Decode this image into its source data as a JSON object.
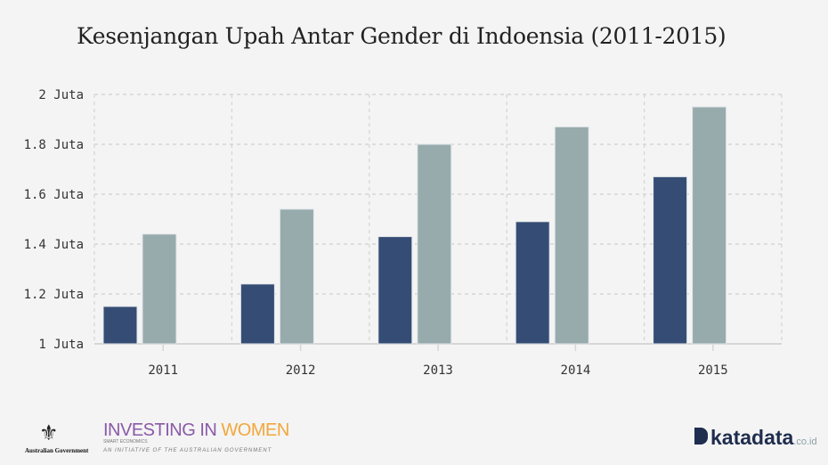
{
  "chart_data": {
    "type": "bar",
    "title": "Kesenjangan Upah Antar Gender di Indoensia (2011-2015)",
    "categories": [
      "2011",
      "2012",
      "2013",
      "2014",
      "2015"
    ],
    "series": [
      {
        "values": [
          1.15,
          1.24,
          1.43,
          1.49,
          1.67
        ],
        "color": "#354d74"
      },
      {
        "values": [
          1.44,
          1.54,
          1.8,
          1.87,
          1.95
        ],
        "color": "#97abad"
      }
    ],
    "ylim": [
      1,
      2
    ],
    "yticks": [
      1,
      1.2,
      1.4,
      1.6,
      1.8,
      2
    ],
    "ytick_labels": [
      "1 Juta",
      "1.2 Juta",
      "1.4 Juta",
      "1.6 Juta",
      "1.8 Juta",
      "2 Juta"
    ],
    "grid": true,
    "legend": "none"
  },
  "footer": {
    "left_logo": {
      "gov": "Australian Government",
      "brand_a": "INVESTING IN ",
      "brand_b": "WOMEN",
      "tagline": "SMART ECONOMICS",
      "initiative": "AN INITIATIVE OF THE AUSTRALIAN GOVERNMENT"
    },
    "right_logo": {
      "name": "katadata",
      "suffix": ".co.id"
    }
  }
}
